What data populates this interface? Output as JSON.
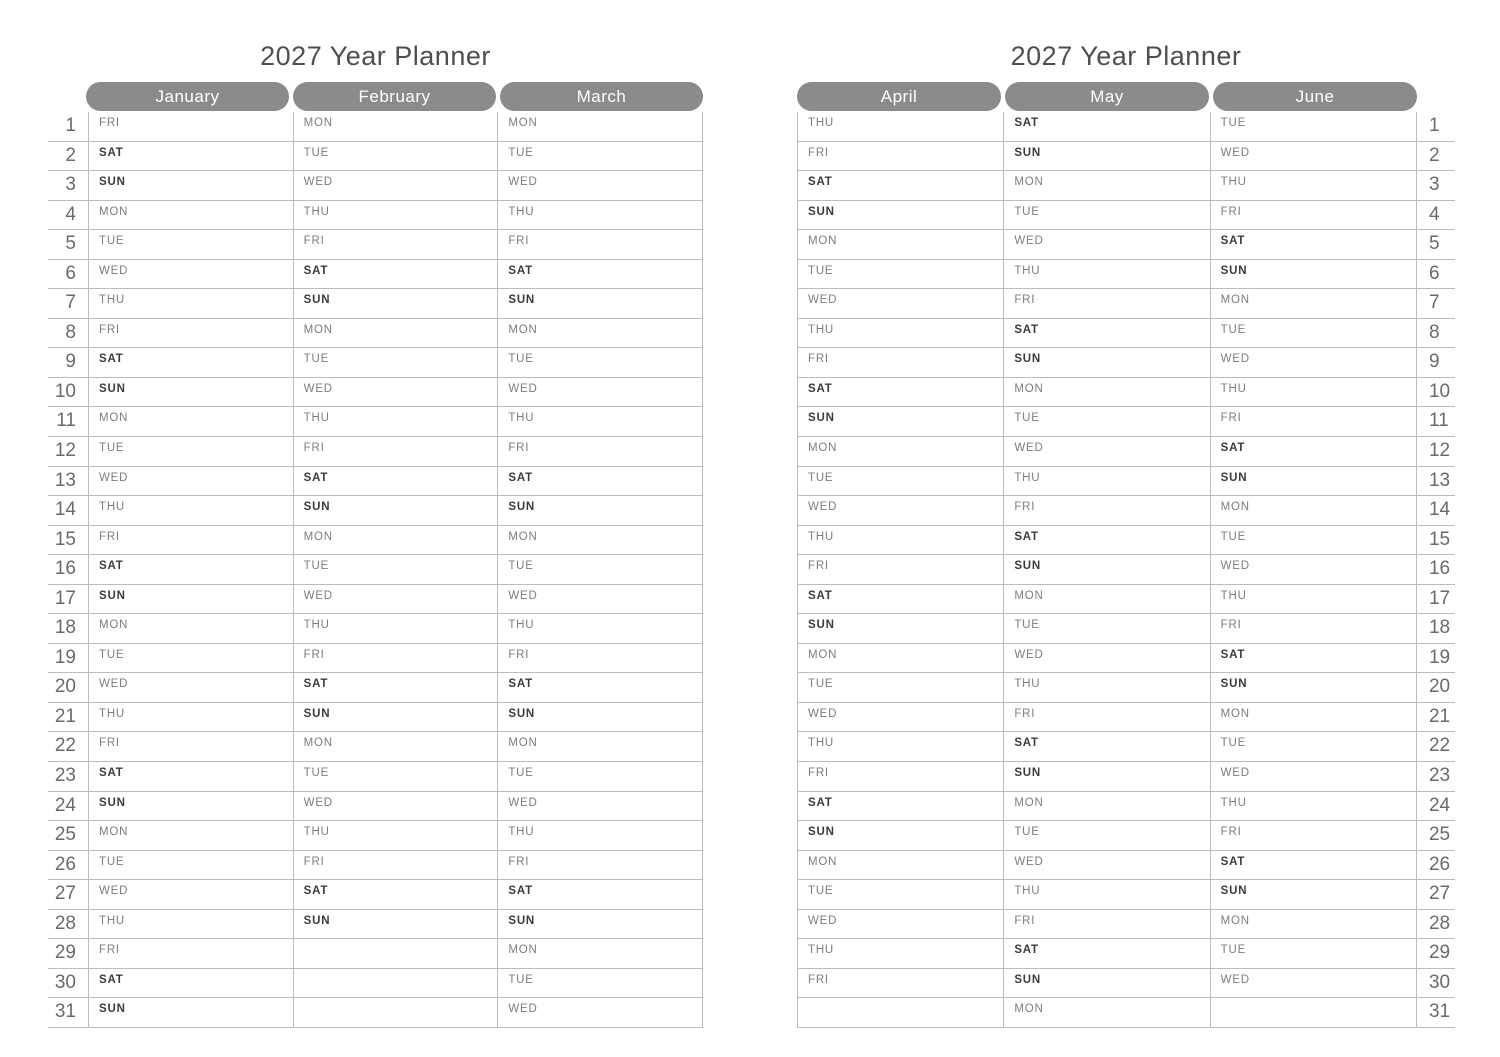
{
  "title": "2027 Year Planner",
  "rows": 31,
  "day_numbers": [
    1,
    2,
    3,
    4,
    5,
    6,
    7,
    8,
    9,
    10,
    11,
    12,
    13,
    14,
    15,
    16,
    17,
    18,
    19,
    20,
    21,
    22,
    23,
    24,
    25,
    26,
    27,
    28,
    29,
    30,
    31
  ],
  "weekend_labels": [
    "SAT",
    "SUN"
  ],
  "colors": {
    "pill_bg": "#8b8b8b",
    "pill_text": "#ffffff",
    "line": "#bcbcbc",
    "weekday": "#7d7d7d",
    "weekend": "#3b3b3b",
    "number": "#6a6a6a",
    "title": "#4f4f4f"
  },
  "pages": [
    {
      "id": "left",
      "title": "2027 Year Planner",
      "numbers_side": "left",
      "months": [
        {
          "name": "January",
          "days": [
            "FRI",
            "SAT",
            "SUN",
            "MON",
            "TUE",
            "WED",
            "THU",
            "FRI",
            "SAT",
            "SUN",
            "MON",
            "TUE",
            "WED",
            "THU",
            "FRI",
            "SAT",
            "SUN",
            "MON",
            "TUE",
            "WED",
            "THU",
            "FRI",
            "SAT",
            "SUN",
            "MON",
            "TUE",
            "WED",
            "THU",
            "FRI",
            "SAT",
            "SUN"
          ]
        },
        {
          "name": "February",
          "days": [
            "MON",
            "TUE",
            "WED",
            "THU",
            "FRI",
            "SAT",
            "SUN",
            "MON",
            "TUE",
            "WED",
            "THU",
            "FRI",
            "SAT",
            "SUN",
            "MON",
            "TUE",
            "WED",
            "THU",
            "FRI",
            "SAT",
            "SUN",
            "MON",
            "TUE",
            "WED",
            "THU",
            "FRI",
            "SAT",
            "SUN"
          ]
        },
        {
          "name": "March",
          "days": [
            "MON",
            "TUE",
            "WED",
            "THU",
            "FRI",
            "SAT",
            "SUN",
            "MON",
            "TUE",
            "WED",
            "THU",
            "FRI",
            "SAT",
            "SUN",
            "MON",
            "TUE",
            "WED",
            "THU",
            "FRI",
            "SAT",
            "SUN",
            "MON",
            "TUE",
            "WED",
            "THU",
            "FRI",
            "SAT",
            "SUN",
            "MON",
            "TUE",
            "WED"
          ]
        }
      ]
    },
    {
      "id": "right",
      "title": "2027 Year Planner",
      "numbers_side": "right",
      "months": [
        {
          "name": "April",
          "days": [
            "THU",
            "FRI",
            "SAT",
            "SUN",
            "MON",
            "TUE",
            "WED",
            "THU",
            "FRI",
            "SAT",
            "SUN",
            "MON",
            "TUE",
            "WED",
            "THU",
            "FRI",
            "SAT",
            "SUN",
            "MON",
            "TUE",
            "WED",
            "THU",
            "FRI",
            "SAT",
            "SUN",
            "MON",
            "TUE",
            "WED",
            "THU",
            "FRI"
          ]
        },
        {
          "name": "May",
          "days": [
            "SAT",
            "SUN",
            "MON",
            "TUE",
            "WED",
            "THU",
            "FRI",
            "SAT",
            "SUN",
            "MON",
            "TUE",
            "WED",
            "THU",
            "FRI",
            "SAT",
            "SUN",
            "MON",
            "TUE",
            "WED",
            "THU",
            "FRI",
            "SAT",
            "SUN",
            "MON",
            "TUE",
            "WED",
            "THU",
            "FRI",
            "SAT",
            "SUN",
            "MON"
          ]
        },
        {
          "name": "June",
          "days": [
            "TUE",
            "WED",
            "THU",
            "FRI",
            "SAT",
            "SUN",
            "MON",
            "TUE",
            "WED",
            "THU",
            "FRI",
            "SAT",
            "SUN",
            "MON",
            "TUE",
            "WED",
            "THU",
            "FRI",
            "SAT",
            "SUN",
            "MON",
            "TUE",
            "WED",
            "THU",
            "FRI",
            "SAT",
            "SUN",
            "MON",
            "TUE",
            "WED"
          ]
        }
      ]
    }
  ]
}
